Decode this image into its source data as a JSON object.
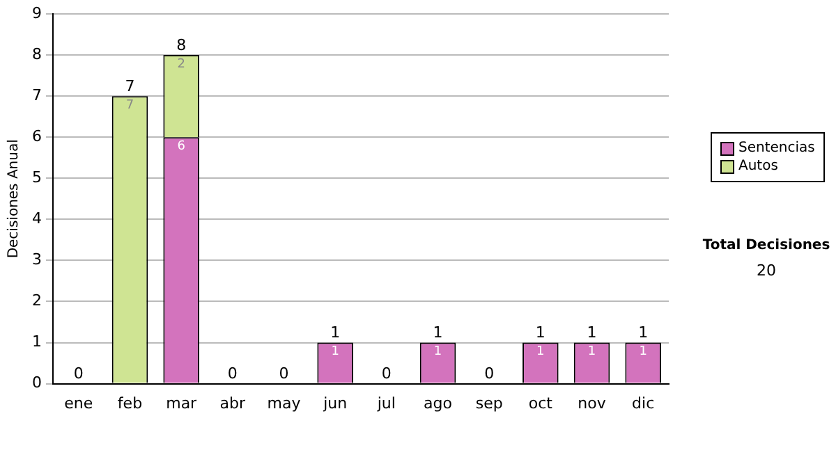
{
  "chart_data": {
    "type": "bar",
    "ylabel": "Decisiones Anual",
    "categories": [
      "ene",
      "feb",
      "mar",
      "abr",
      "may",
      "jun",
      "jul",
      "ago",
      "sep",
      "oct",
      "nov",
      "dic"
    ],
    "stacked": true,
    "ylim": [
      0,
      9
    ],
    "yticks": [
      0,
      1,
      2,
      3,
      4,
      5,
      6,
      7,
      8,
      9
    ],
    "grid": "y",
    "legend": "right",
    "series": [
      {
        "name": "Sentencias",
        "color": "#d373bd",
        "values": [
          0,
          0,
          6,
          0,
          0,
          1,
          0,
          1,
          0,
          1,
          1,
          1
        ],
        "value_labels": [
          null,
          null,
          "6",
          null,
          null,
          "1",
          null,
          "1",
          null,
          "1",
          "1",
          "1"
        ]
      },
      {
        "name": "Autos",
        "color": "#cfe493",
        "values": [
          0,
          7,
          2,
          0,
          0,
          0,
          0,
          0,
          0,
          0,
          0,
          0
        ],
        "value_labels": [
          null,
          "7",
          "2",
          null,
          null,
          null,
          null,
          null,
          null,
          null,
          null,
          null
        ]
      }
    ],
    "totals": [
      "0",
      "7",
      "8",
      "0",
      "0",
      "1",
      "0",
      "1",
      "0",
      "1",
      "1",
      "1"
    ],
    "annotations": [
      "Total Decisiones",
      "20"
    ]
  }
}
